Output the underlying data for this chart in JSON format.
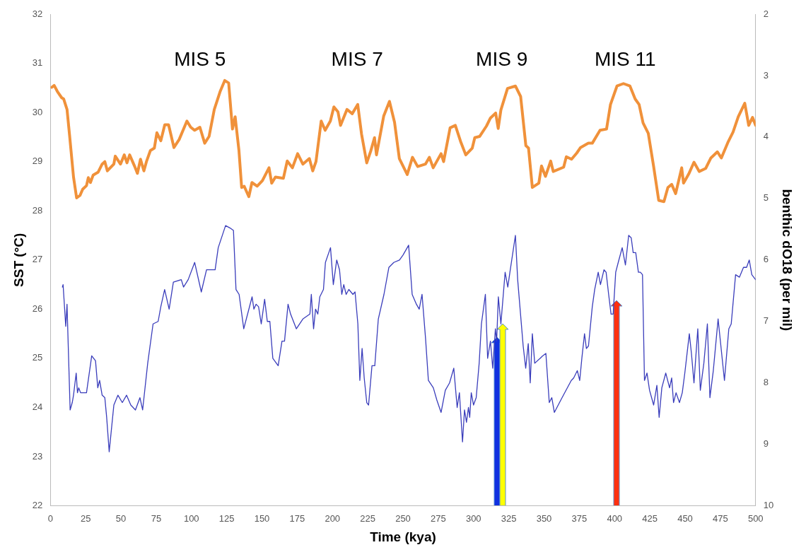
{
  "chart_data": {
    "type": "line",
    "xlabel": "Time (kya)",
    "ylabel": "SST (°C)",
    "y2label": "benthic dO18 (per mil)",
    "xlim": [
      0,
      500
    ],
    "xticks": [
      0,
      25,
      50,
      75,
      100,
      125,
      150,
      175,
      200,
      225,
      250,
      275,
      300,
      325,
      350,
      375,
      400,
      425,
      450,
      475,
      500
    ],
    "ylim": [
      22,
      32
    ],
    "yticks": [
      22,
      23,
      24,
      25,
      26,
      27,
      28,
      29,
      30,
      31,
      32
    ],
    "y2lim": [
      10,
      2
    ],
    "y2ticks": [
      2,
      3,
      4,
      5,
      6,
      7,
      8,
      9,
      10
    ],
    "grid": false,
    "legend": false,
    "marker": "none",
    "line_style": "solid",
    "annotations": [
      "MIS 5",
      "MIS 7",
      "MIS 9",
      "MIS 11"
    ],
    "series": [
      {
        "color": "#f0913a",
        "axis": "y2",
        "x": [
          1,
          2.7,
          5,
          8,
          9.4,
          11.8,
          13.6,
          16.4,
          18.6,
          21,
          22.9,
          25.6,
          26.9,
          28.4,
          30.3,
          33.9,
          36.7,
          38.6,
          40.4,
          45,
          46,
          49.7,
          52.4,
          54.3,
          56.2,
          59.8,
          61.7,
          63.9,
          66.3,
          68.1,
          70.9,
          73.7,
          75.5,
          78.3,
          81.1,
          83.8,
          87.6,
          91.3,
          96.8,
          99.5,
          102.3,
          106,
          109.4,
          112.5,
          116.2,
          120.5,
          123.6,
          126.4,
          129.1,
          131,
          133.7,
          135.6,
          137.4,
          140.7,
          142.9,
          146.6,
          150.3,
          155,
          156.9,
          159.6,
          165.2,
          167.9,
          171.6,
          175.3,
          179,
          183.6,
          186,
          188.3,
          192,
          194.8,
          198.5,
          201,
          203.9,
          205.7,
          210.3,
          214,
          217.9,
          220.6,
          224.3,
          227.1,
          229.8,
          231.2,
          236.3,
          240.4,
          244,
          247.4,
          253,
          256.7,
          260.4,
          265.9,
          268.7,
          271.4,
          277,
          278.8,
          283.4,
          287.1,
          290.8,
          294.5,
          299.1,
          300.9,
          304.3,
          309.2,
          312,
          315.7,
          317.5,
          319.4,
          324.1,
          329.7,
          333.4,
          337.1,
          339,
          341.7,
          346.3,
          348.2,
          351,
          354.7,
          356.5,
          363.9,
          365.8,
          369.5,
          373.2,
          375.9,
          381.4,
          384.2,
          389.7,
          394.3,
          397.1,
          401.7,
          406.3,
          410.9,
          414.6,
          417.4,
          420.2,
          423.9,
          427.7,
          431.3,
          435,
          437.8,
          440.5,
          443.3,
          447.6,
          448.9,
          452.6,
          456.3,
          460,
          464.6,
          468.3,
          472.9,
          475.7,
          480.3,
          484,
          487.7,
          492.3,
          495.1,
          497.8,
          500
        ],
        "values": [
          3.19,
          3.16,
          3.26,
          3.36,
          3.38,
          3.55,
          3.97,
          4.65,
          4.99,
          4.95,
          4.85,
          4.79,
          4.66,
          4.74,
          4.62,
          4.57,
          4.44,
          4.4,
          4.55,
          4.44,
          4.31,
          4.44,
          4.29,
          4.42,
          4.29,
          4.48,
          4.59,
          4.36,
          4.55,
          4.4,
          4.22,
          4.18,
          3.93,
          4.06,
          3.8,
          3.8,
          4.17,
          4.04,
          3.74,
          3.84,
          3.89,
          3.84,
          4.1,
          3.99,
          3.55,
          3.25,
          3.08,
          3.12,
          3.87,
          3.67,
          4.22,
          4.82,
          4.8,
          4.97,
          4.74,
          4.8,
          4.71,
          4.5,
          4.75,
          4.65,
          4.67,
          4.39,
          4.5,
          4.27,
          4.44,
          4.35,
          4.55,
          4.4,
          3.74,
          3.89,
          3.74,
          3.51,
          3.59,
          3.81,
          3.55,
          3.62,
          3.47,
          3.95,
          4.42,
          4.23,
          4.01,
          4.29,
          3.66,
          3.42,
          3.76,
          4.35,
          4.61,
          4.33,
          4.48,
          4.44,
          4.33,
          4.5,
          4.27,
          4.4,
          3.85,
          3.81,
          4.07,
          4.29,
          4.18,
          4.01,
          3.99,
          3.82,
          3.69,
          3.61,
          3.86,
          3.56,
          3.21,
          3.17,
          3.34,
          4.14,
          4.18,
          4.82,
          4.75,
          4.47,
          4.64,
          4.39,
          4.56,
          4.49,
          4.32,
          4.36,
          4.26,
          4.17,
          4.1,
          4.1,
          3.89,
          3.87,
          3.47,
          3.17,
          3.13,
          3.17,
          3.38,
          3.47,
          3.77,
          3.94,
          4.48,
          5.03,
          5.05,
          4.82,
          4.77,
          4.92,
          4.5,
          4.75,
          4.6,
          4.41,
          4.56,
          4.51,
          4.34,
          4.24,
          4.34,
          4.09,
          3.92,
          3.67,
          3.45,
          3.81,
          3.68,
          3.81
        ]
      },
      {
        "color": "#3a3dbb",
        "axis": "y",
        "x": [
          8.5,
          9,
          10.9,
          11.8,
          14,
          15.5,
          16.4,
          18.3,
          19.2,
          20.1,
          21.4,
          25.6,
          29.3,
          32,
          33.6,
          34.9,
          36.7,
          38.6,
          39.9,
          41.7,
          45,
          47.9,
          51,
          54,
          57,
          60.3,
          63.5,
          65.4,
          69,
          72.8,
          76.4,
          78.3,
          81,
          84.2,
          87.2,
          92.8,
          94.4,
          97.7,
          102.3,
          107,
          110.7,
          116.8,
          119,
          124.2,
          127.4,
          129.8,
          131.6,
          133.8,
          137.1,
          143,
          144.3,
          145.8,
          147.6,
          149.5,
          151.9,
          153.8,
          155.6,
          157.7,
          161.5,
          164.2,
          166,
          168.5,
          170.3,
          174.4,
          179,
          184,
          185,
          186.6,
          188,
          189.6,
          191,
          193.6,
          195,
          198.6,
          200.6,
          203,
          205,
          206.6,
          208,
          209.7,
          211.6,
          214.5,
          216,
          218,
          219.4,
          221,
          222.5,
          224.3,
          225.6,
          228,
          230,
          232.5,
          236.5,
          240,
          243.5,
          247.5,
          250,
          254,
          256.5,
          259.5,
          261.5,
          263.5,
          266,
          268,
          271.5,
          274,
          277,
          280,
          283,
          286,
          288.4,
          290,
          292.2,
          293.6,
          295,
          296.4,
          297.3,
          298.4,
          300,
          301.9,
          304,
          305.6,
          308.4,
          310,
          312,
          313.6,
          315.5,
          316.4,
          317.6,
          319.4,
          322.4,
          324.3,
          325.8,
          329.7,
          331.3,
          335.2,
          337,
          338.8,
          340.2,
          341.7,
          343.4,
          347.2,
          349,
          351.3,
          353.7,
          355.5,
          357.3,
          362.8,
          369.3,
          371,
          373.6,
          375.3,
          376.8,
          378.7,
          380,
          381.5,
          384.2,
          385.9,
          388.4,
          390,
          392.5,
          394,
          395.8,
          397.5,
          399,
          400.8,
          402.6,
          405.4,
          407.7,
          410,
          411.8,
          413.2,
          415,
          416.9,
          418.3,
          419.8,
          421.2,
          423,
          424.8,
          427.7,
          430,
          431.6,
          433.5,
          436.3,
          439,
          440.5,
          441.8,
          443.6,
          446,
          448,
          449.8,
          453,
          454.5,
          456.3,
          459,
          460.8,
          463.3,
          465.8,
          467.6,
          470,
          473.4,
          477.9,
          481,
          482.7,
          485.8,
          488.5,
          491.4,
          493.6,
          495.5,
          497.3,
          500
        ],
        "values": [
          26.45,
          26.5,
          25.65,
          26.1,
          23.95,
          24.1,
          24.25,
          24.7,
          24.3,
          24.4,
          24.3,
          24.3,
          25.05,
          24.95,
          24.4,
          24.55,
          24.25,
          24.2,
          23.8,
          23.1,
          24.05,
          24.25,
          24.1,
          24.25,
          24.05,
          23.95,
          24.2,
          23.95,
          24.9,
          25.7,
          25.75,
          26.05,
          26.4,
          26,
          26.55,
          26.6,
          26.45,
          26.6,
          26.95,
          26.35,
          26.8,
          26.8,
          27.25,
          27.7,
          27.65,
          27.6,
          26.4,
          26.3,
          25.6,
          26.25,
          26,
          26.1,
          26.05,
          25.7,
          26.2,
          25.75,
          25.75,
          25,
          24.85,
          25.35,
          25.35,
          26.1,
          25.9,
          25.6,
          25.8,
          25.9,
          26.3,
          25.6,
          26,
          25.9,
          26.25,
          26.4,
          26.95,
          27.25,
          26.5,
          27,
          26.8,
          26.3,
          26.5,
          26.3,
          26.4,
          26.3,
          26.35,
          25.7,
          24.55,
          25.2,
          24.6,
          24.1,
          24.05,
          24.85,
          24.85,
          25.8,
          26.3,
          26.85,
          26.95,
          27,
          27.1,
          27.3,
          26.3,
          26.1,
          26,
          26.3,
          25.4,
          24.55,
          24.4,
          24.15,
          23.9,
          24.35,
          24.5,
          24.8,
          24,
          24.3,
          23.3,
          23.95,
          23.7,
          24,
          23.8,
          24.3,
          24.05,
          24.2,
          24.9,
          25.7,
          26.3,
          25,
          25.35,
          24.8,
          25.6,
          25.35,
          26.25,
          25.7,
          26.75,
          26.45,
          26.75,
          27.5,
          26.6,
          25.25,
          24.8,
          25.3,
          24.5,
          25.5,
          24.9,
          25,
          25.05,
          25.1,
          24.1,
          24.2,
          23.9,
          24.2,
          24.55,
          24.6,
          24.75,
          24.55,
          25,
          25.5,
          25.2,
          25.25,
          26.05,
          26.4,
          26.75,
          26.5,
          26.8,
          26.75,
          26.3,
          25.9,
          25.9,
          26.75,
          26.95,
          27.25,
          26.9,
          27.5,
          27.45,
          27.15,
          27.15,
          26.75,
          26.75,
          26.7,
          24.55,
          24.7,
          24.35,
          24.05,
          24.45,
          23.8,
          24.4,
          24.7,
          24.4,
          24.6,
          24.1,
          24.3,
          24.1,
          24.3,
          24.7,
          25.5,
          25.1,
          24.5,
          25.6,
          24.35,
          24.9,
          25.7,
          24.2,
          24.75,
          25.8,
          24.55,
          25.6,
          25.7,
          26.7,
          26.65,
          26.85,
          26.85,
          27,
          26.7,
          26.6
        ]
      }
    ]
  }
}
